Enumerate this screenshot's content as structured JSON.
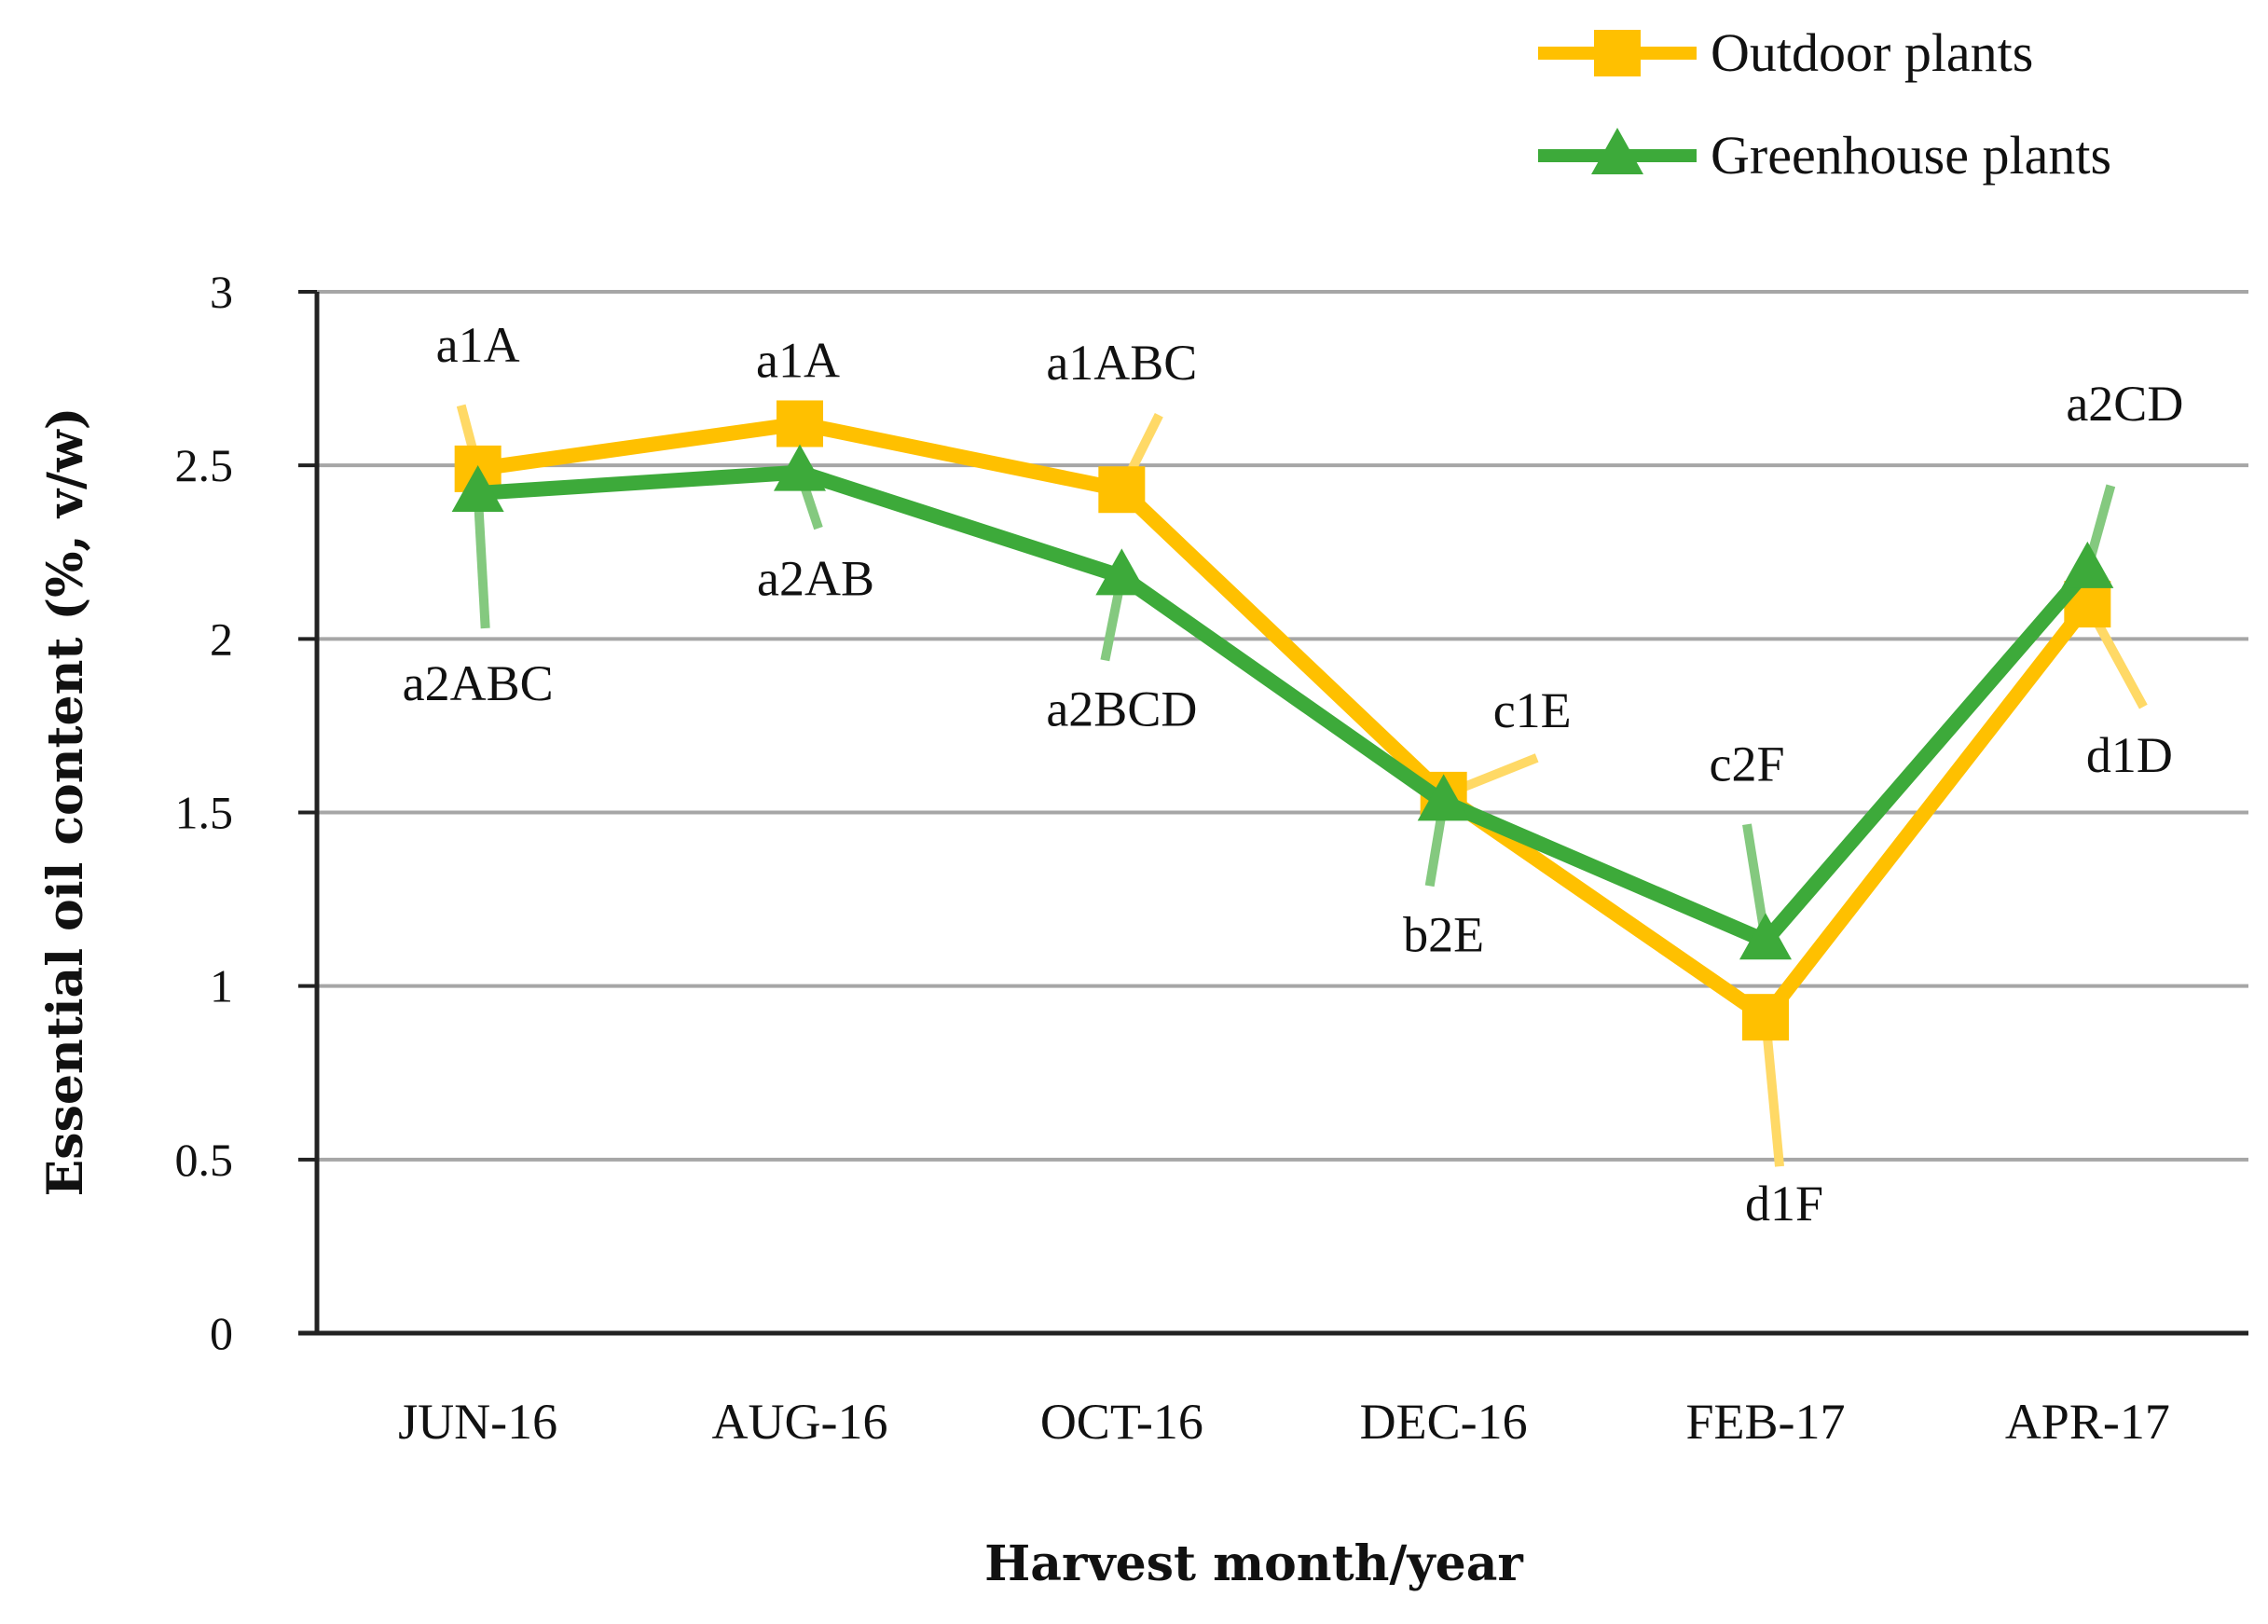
{
  "chart_data": {
    "type": "line",
    "title": "",
    "xlabel": "Harvest month/year",
    "ylabel": "Essential oil content (%, v/w)",
    "categories": [
      "JUN-16",
      "AUG-16",
      "OCT-16",
      "DEC-16",
      "FEB-17",
      "APR-17"
    ],
    "ylim": [
      0,
      3
    ],
    "yticks": [
      "0",
      "0.5",
      "1",
      "1.5",
      "2",
      "2.5",
      "3"
    ],
    "grid": true,
    "legend_position": "top-right",
    "series": [
      {
        "name": "Outdoor plants",
        "color": "#FFC000",
        "marker": "square",
        "values": [
          2.49,
          2.62,
          2.43,
          1.55,
          0.91,
          2.1
        ],
        "labels": [
          "a1A",
          "a1A",
          "a1ABC",
          "c1E",
          "d1F",
          "d1D"
        ]
      },
      {
        "name": "Greenhouse plants",
        "color": "#3DAA3A",
        "marker": "triangle",
        "values": [
          2.42,
          2.48,
          2.18,
          1.53,
          1.13,
          2.2
        ],
        "labels": [
          "a2ABC",
          "a2AB",
          "a2BCD",
          "b2E",
          "c2F",
          "a2CD"
        ]
      }
    ]
  }
}
